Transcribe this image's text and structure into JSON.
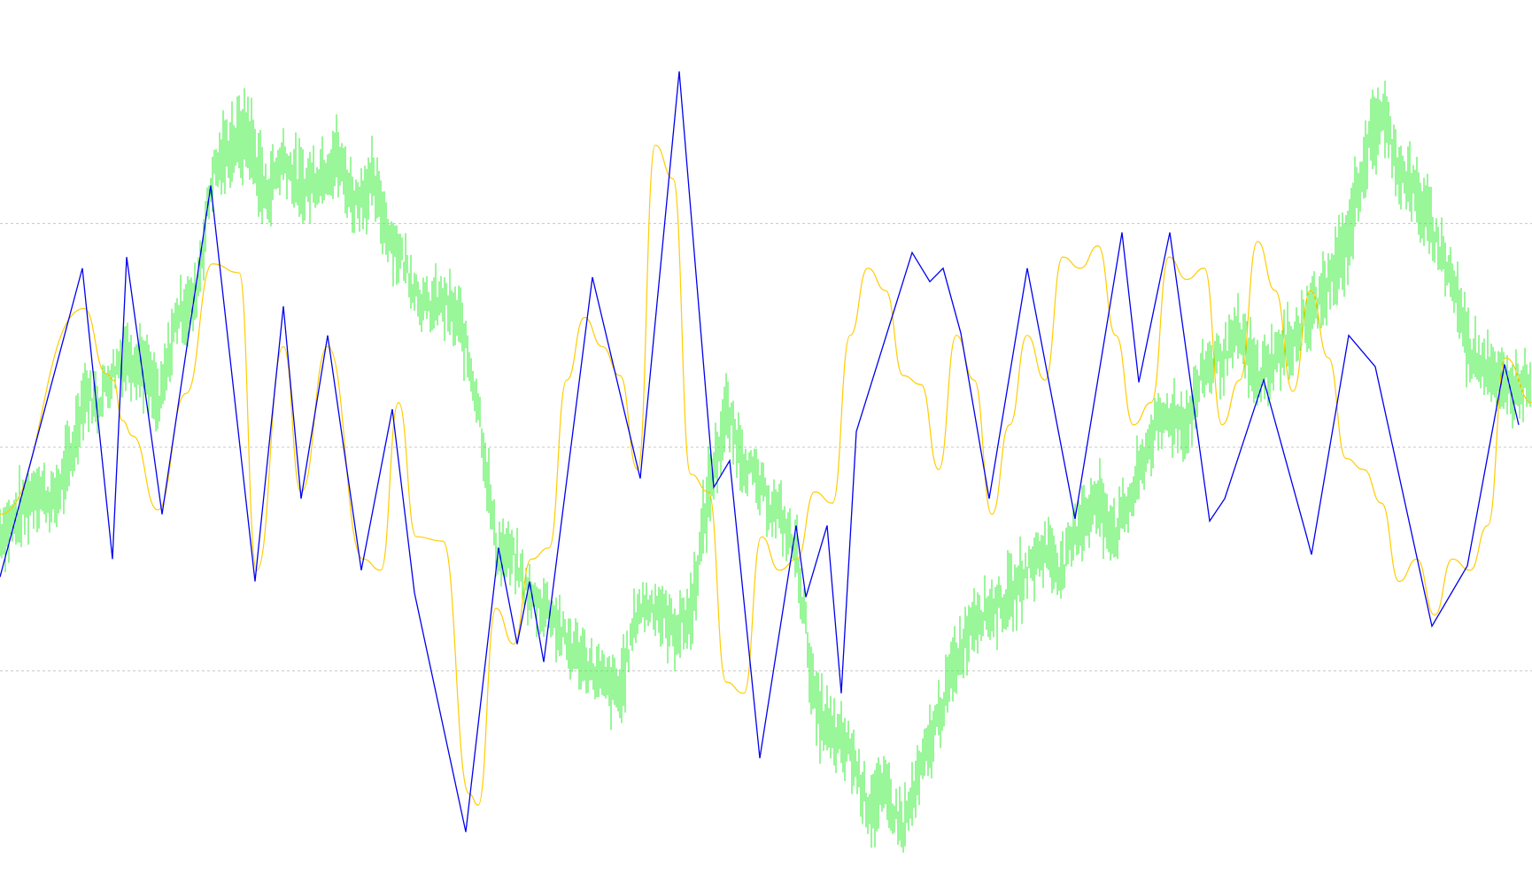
{
  "chart_data": {
    "type": "line",
    "title": "",
    "xlabel": "",
    "ylabel": "",
    "xlim": [
      0,
      1730
    ],
    "ylim": [
      -1.9,
      1.9
    ],
    "grid": {
      "horizontal_levels": [
        1,
        0,
        -1
      ],
      "style": "dotted"
    },
    "legend": "none",
    "colors": {
      "background": "#ffffff",
      "grid": "#c8c8c8",
      "price_bars": "#33ee33",
      "smooth_line": "#ffcc00",
      "zigzag": "#0000ee"
    },
    "series": [
      {
        "kind": "bars",
        "color_key": "price_bars",
        "x": [
          0,
          20,
          40,
          60,
          80,
          95,
          110,
          125,
          140,
          160,
          180,
          200,
          220,
          240,
          260,
          280,
          300,
          320,
          340,
          360,
          380,
          400,
          420,
          440,
          460,
          480,
          500,
          520,
          540,
          560,
          580,
          600,
          620,
          640,
          660,
          680,
          700,
          720,
          740,
          760,
          780,
          800,
          820,
          840,
          860,
          880,
          900,
          920,
          940,
          960,
          980,
          1000,
          1020,
          1040,
          1060,
          1080,
          1100,
          1120,
          1140,
          1160,
          1180,
          1200,
          1220,
          1240,
          1260,
          1280,
          1300,
          1320,
          1340,
          1360,
          1380,
          1400,
          1420,
          1440,
          1460,
          1480,
          1500,
          1520,
          1540,
          1560,
          1580,
          1600,
          1620,
          1640,
          1660,
          1680,
          1700,
          1730
        ],
        "mid": [
          -0.38,
          -0.32,
          -0.18,
          -0.25,
          -0.05,
          0.25,
          0.2,
          0.32,
          0.42,
          0.38,
          0.18,
          0.6,
          0.65,
          1.22,
          1.35,
          1.4,
          1.12,
          1.3,
          1.15,
          1.22,
          1.3,
          1.1,
          1.18,
          0.95,
          0.8,
          0.62,
          0.65,
          0.55,
          0.2,
          -0.45,
          -0.5,
          -0.68,
          -0.72,
          -0.88,
          -0.95,
          -1.05,
          -1.1,
          -0.72,
          -0.7,
          -0.82,
          -0.75,
          -0.2,
          0.15,
          -0.05,
          -0.2,
          -0.3,
          -0.48,
          -1.15,
          -1.3,
          -1.35,
          -1.6,
          -1.55,
          -1.7,
          -1.45,
          -1.2,
          -0.95,
          -0.75,
          -0.72,
          -0.68,
          -0.55,
          -0.45,
          -0.55,
          -0.32,
          -0.25,
          -0.38,
          -0.2,
          0.05,
          0.15,
          0.1,
          0.35,
          0.4,
          0.5,
          0.3,
          0.4,
          0.48,
          0.6,
          0.72,
          0.9,
          1.28,
          1.5,
          1.25,
          1.12,
          0.95,
          0.75,
          0.42,
          0.38,
          0.25,
          0.32
        ],
        "amp": [
          0.1,
          0.12,
          0.1,
          0.1,
          0.12,
          0.1,
          0.08,
          0.1,
          0.1,
          0.12,
          0.1,
          0.1,
          0.12,
          0.1,
          0.12,
          0.15,
          0.12,
          0.1,
          0.12,
          0.1,
          0.12,
          0.1,
          0.12,
          0.1,
          0.08,
          0.08,
          0.1,
          0.1,
          0.1,
          0.1,
          0.08,
          0.08,
          0.1,
          0.1,
          0.08,
          0.1,
          0.12,
          0.08,
          0.08,
          0.1,
          0.12,
          0.12,
          0.1,
          0.1,
          0.08,
          0.08,
          0.1,
          0.12,
          0.12,
          0.1,
          0.12,
          0.12,
          0.1,
          0.1,
          0.1,
          0.1,
          0.1,
          0.1,
          0.12,
          0.1,
          0.1,
          0.1,
          0.12,
          0.12,
          0.1,
          0.1,
          0.1,
          0.1,
          0.1,
          0.12,
          0.1,
          0.1,
          0.12,
          0.1,
          0.1,
          0.12,
          0.12,
          0.12,
          0.12,
          0.12,
          0.1,
          0.12,
          0.1,
          0.1,
          0.12,
          0.1,
          0.1,
          0.1
        ]
      },
      {
        "kind": "line",
        "color_key": "zigzag",
        "x": [
          0,
          93,
          127,
          143,
          183,
          238,
          288,
          320,
          340,
          370,
          408,
          443,
          468,
          526,
          563,
          584,
          598,
          614,
          669,
          723,
          767,
          806,
          824,
          858,
          899,
          910,
          934,
          950,
          967,
          1030,
          1050,
          1065,
          1085,
          1117,
          1160,
          1214,
          1267,
          1286,
          1321,
          1366,
          1383,
          1427,
          1475,
          1481,
          1523,
          1553,
          1617,
          1657,
          1699,
          1715
        ],
        "y": [
          -0.58,
          0.8,
          -0.5,
          0.85,
          -0.3,
          1.17,
          -0.6,
          0.63,
          -0.23,
          0.5,
          -0.55,
          0.17,
          -0.65,
          -1.72,
          -0.45,
          -0.88,
          -0.6,
          -0.96,
          0.76,
          -0.14,
          1.68,
          -0.18,
          -0.06,
          -1.39,
          -0.35,
          -0.67,
          -0.35,
          -1.1,
          0.07,
          0.87,
          0.74,
          0.8,
          0.51,
          -0.23,
          0.8,
          -0.32,
          0.96,
          0.29,
          0.96,
          -0.33,
          -0.23,
          0.3,
          -0.39,
          -0.48,
          0.5,
          0.36,
          -0.8,
          -0.53,
          0.37,
          0.1
        ]
      },
      {
        "kind": "line",
        "color_key": "smooth_line",
        "x": [
          0,
          95,
          120,
          128,
          138,
          150,
          178,
          210,
          240,
          270,
          290,
          320,
          340,
          370,
          410,
          430,
          450,
          470,
          500,
          530,
          540,
          560,
          580,
          600,
          620,
          640,
          660,
          680,
          700,
          720,
          740,
          760,
          780,
          800,
          820,
          840,
          860,
          880,
          900,
          920,
          940,
          960,
          980,
          1000,
          1020,
          1040,
          1060,
          1080,
          1100,
          1120,
          1140,
          1160,
          1180,
          1200,
          1220,
          1240,
          1260,
          1280,
          1300,
          1320,
          1340,
          1360,
          1380,
          1400,
          1420,
          1440,
          1460,
          1480,
          1500,
          1520,
          1540,
          1560,
          1580,
          1600,
          1620,
          1640,
          1660,
          1680,
          1700,
          1730
        ],
        "y": [
          -0.3,
          0.62,
          0.33,
          0.3,
          0.12,
          0.05,
          -0.28,
          0.24,
          0.82,
          0.78,
          -0.55,
          0.45,
          -0.2,
          0.45,
          -0.5,
          -0.55,
          0.2,
          -0.4,
          -0.42,
          -1.55,
          -1.6,
          -0.72,
          -0.88,
          -0.5,
          -0.45,
          0.3,
          0.58,
          0.45,
          0.32,
          -0.1,
          1.35,
          1.2,
          -0.12,
          -0.2,
          -1.05,
          -1.1,
          -0.4,
          -0.55,
          -0.5,
          -0.2,
          -0.25,
          0.5,
          0.8,
          0.7,
          0.32,
          0.28,
          -0.1,
          0.5,
          0.3,
          -0.3,
          0.1,
          0.5,
          0.3,
          0.85,
          0.8,
          0.9,
          0.5,
          0.1,
          0.2,
          0.85,
          0.75,
          0.8,
          0.1,
          0.3,
          0.92,
          0.7,
          0.25,
          0.7,
          0.4,
          -0.05,
          -0.1,
          -0.25,
          -0.6,
          -0.5,
          -0.75,
          -0.5,
          -0.55,
          -0.35,
          0.4,
          0.2
        ]
      }
    ]
  }
}
